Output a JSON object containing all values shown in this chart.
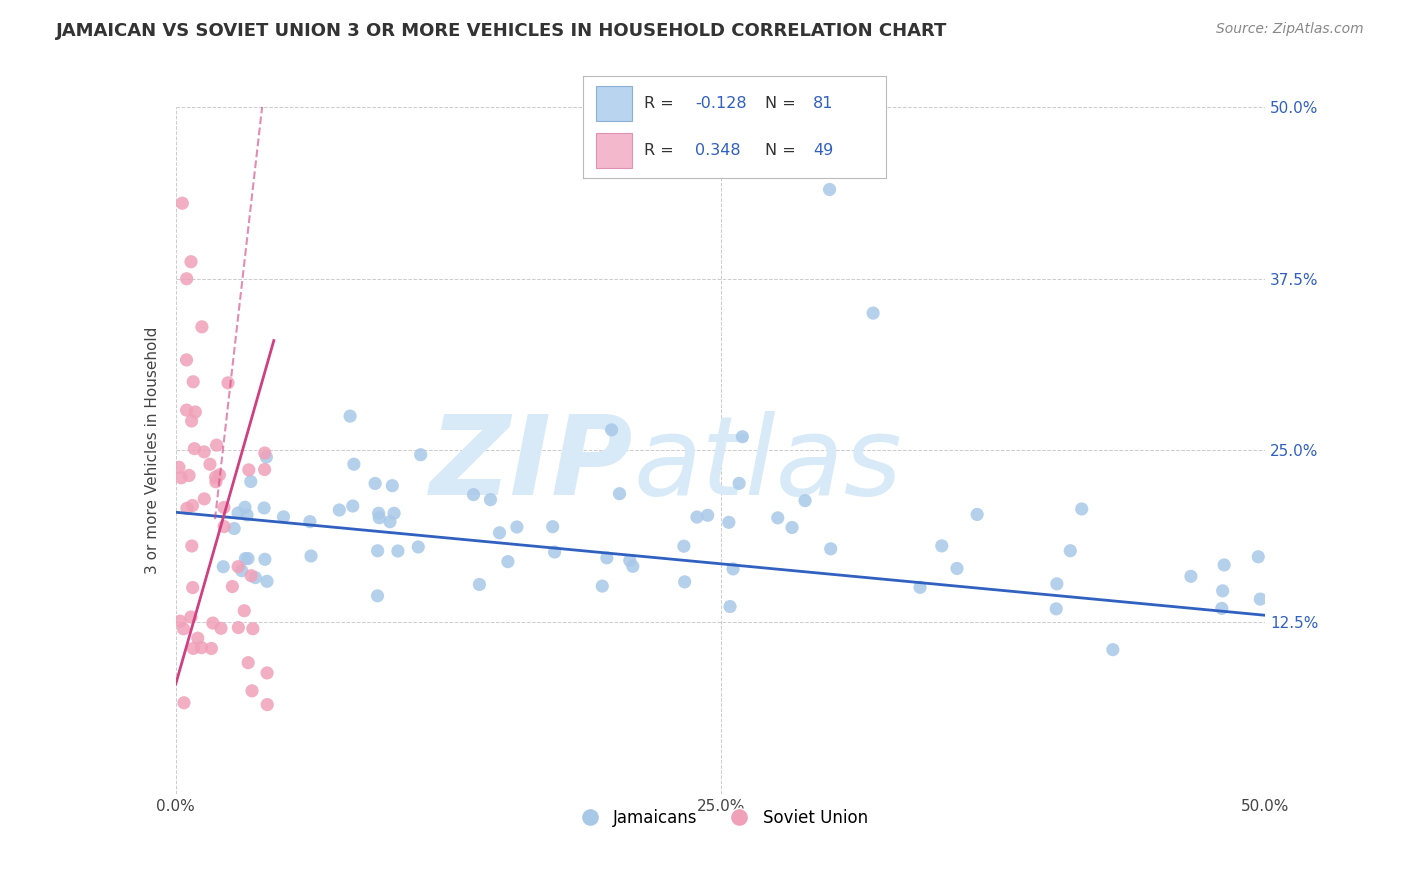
{
  "title": "JAMAICAN VS SOVIET UNION 3 OR MORE VEHICLES IN HOUSEHOLD CORRELATION CHART",
  "source": "Source: ZipAtlas.com",
  "ylabel": "3 or more Vehicles in Household",
  "x_label_jamaicans": "Jamaicans",
  "x_label_soviet": "Soviet Union",
  "xlim": [
    0.0,
    50.0
  ],
  "ylim": [
    0.0,
    50.0
  ],
  "blue_R": -0.128,
  "blue_N": 81,
  "pink_R": 0.348,
  "pink_N": 49,
  "blue_color": "#a8c8e8",
  "pink_color": "#f0a0b8",
  "blue_line_color": "#3060c0",
  "pink_line_color": "#d04080",
  "text_color_blue": "#3060c0",
  "background_color": "#ffffff",
  "grid_color": "#cccccc",
  "watermark_color": "#d8eaf8"
}
